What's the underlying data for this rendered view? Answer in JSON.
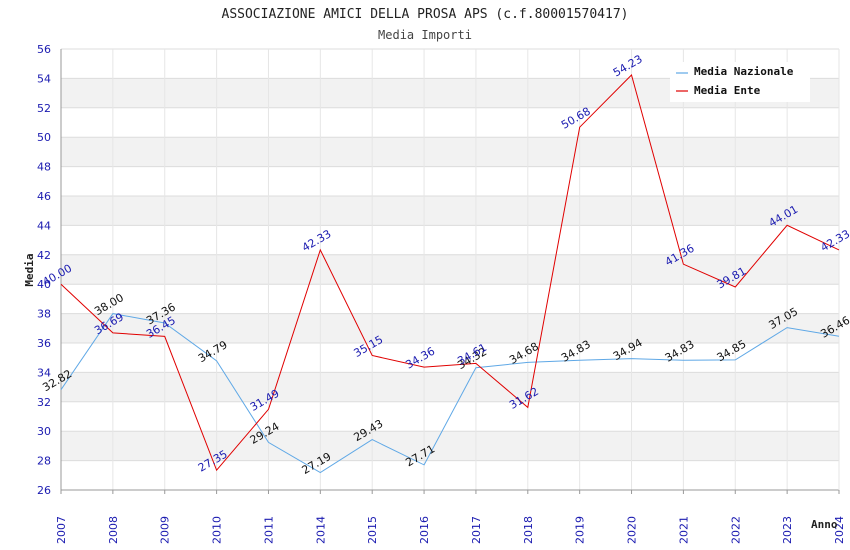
{
  "chart_data": {
    "type": "line",
    "title": "ASSOCIAZIONE AMICI DELLA PROSA APS (c.f.80001570417)",
    "subtitle": "Media Importi",
    "xlabel": "Anno",
    "ylabel": "Media",
    "ylim": [
      26,
      56
    ],
    "ystep": 2,
    "grid": true,
    "legend_position": "top-right",
    "categories": [
      "2007",
      "2008",
      "2009",
      "2010",
      "2011",
      "2014",
      "2015",
      "2016",
      "2017",
      "2018",
      "2019",
      "2020",
      "2021",
      "2022",
      "2023",
      "2024"
    ],
    "y_ticks": [
      "26",
      "28",
      "30",
      "32",
      "34",
      "36",
      "38",
      "40",
      "42",
      "44",
      "46",
      "48",
      "50",
      "52",
      "54",
      "56"
    ],
    "series": [
      {
        "name": "Media Nazionale",
        "color": "#5fa8e6",
        "values": [
          32.82,
          38.0,
          37.36,
          34.79,
          29.24,
          27.19,
          29.43,
          27.71,
          34.32,
          34.68,
          34.83,
          34.94,
          34.83,
          34.85,
          37.05,
          36.46
        ],
        "labels": [
          "32.82",
          "38.00",
          "37.36",
          "34.79",
          "29.24",
          "27.19",
          "29.43",
          "27.71",
          "34.32",
          "34.68",
          "34.83",
          "34.94",
          "34.83",
          "34.85",
          "37.05",
          "36.46"
        ]
      },
      {
        "name": "Media Ente",
        "color": "#e00000",
        "values": [
          40.0,
          36.69,
          36.45,
          27.35,
          31.49,
          42.33,
          35.15,
          34.36,
          34.61,
          31.62,
          50.68,
          54.23,
          41.36,
          39.81,
          44.01,
          42.33
        ],
        "labels": [
          "40.00",
          "36.69",
          "36.45",
          "27.35",
          "31.49",
          "42.33",
          "35.15",
          "34.36",
          "34.61",
          "31.62",
          "50.68",
          "54.23",
          "41.36",
          "39.81",
          "44.01",
          "42.33"
        ]
      }
    ]
  }
}
